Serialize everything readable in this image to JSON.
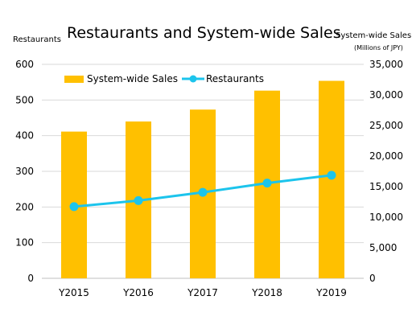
{
  "chart_data": {
    "type": "bar+line",
    "title": "Restaurants and System-wide Sales",
    "categories": [
      "Y2015",
      "Y2016",
      "Y2017",
      "Y2018",
      "Y2019"
    ],
    "series": [
      {
        "name": "System-wide Sales",
        "type": "bar",
        "axis": "right",
        "color": "#FFC000",
        "values": [
          24000,
          25650,
          27600,
          30700,
          32300
        ]
      },
      {
        "name": "Restaurants",
        "type": "line",
        "axis": "left",
        "color": "#1CC4EC",
        "values": [
          201,
          218,
          241,
          267,
          289
        ]
      }
    ],
    "y_left": {
      "label": "Restaurants",
      "ylim": [
        0,
        600
      ],
      "ticks": [
        "0",
        "100",
        "200",
        "300",
        "400",
        "500",
        "600"
      ]
    },
    "y_right": {
      "label": "System-wide  Sales",
      "sublabel": "(Millions of JPY)",
      "ylim": [
        0,
        35000
      ],
      "ticks": [
        "0",
        "5,000",
        "10,000",
        "15,000",
        "20,000",
        "25,000",
        "30,000",
        "35,000"
      ]
    },
    "grid": "horizontal",
    "legend_position": "top-left"
  }
}
